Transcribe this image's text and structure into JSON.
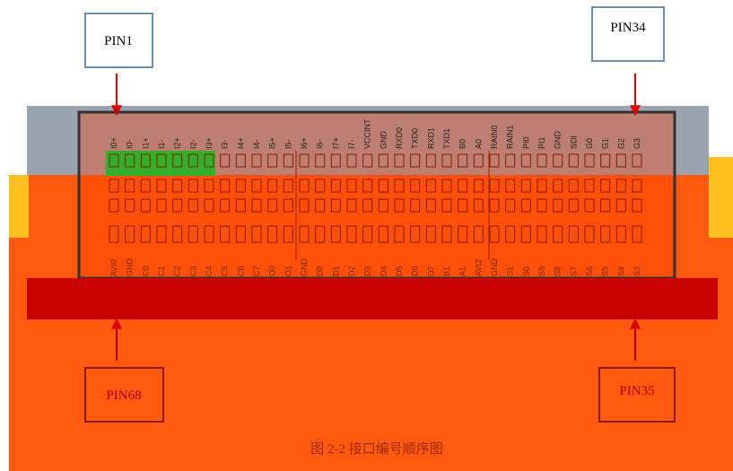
{
  "labels": {
    "pin1": "PIN1",
    "pin34": "PIN34",
    "pin68": "PIN68",
    "pin35": "PIN35"
  },
  "pins_top": [
    "I0+",
    "I0-",
    "I1+",
    "I1-",
    "I2+",
    "I2-",
    "I3+",
    "I3-",
    "I4+",
    "I4-",
    "I5+",
    "I5-",
    "I6+",
    "I6-",
    "I7+",
    "I7-",
    "VCCINT",
    "GND",
    "RXD0",
    "TXD0",
    "RXD1",
    "TXD1",
    "B0",
    "A0",
    "RAIN0",
    "RAIN1",
    "PI0",
    "PI1",
    "GND",
    "SDI",
    "G0",
    "G1",
    "G2",
    "G3"
  ],
  "pins_bottom": [
    "AVI0",
    "GND",
    "C0",
    "C1",
    "C2",
    "C3",
    "C4",
    "C5",
    "C6",
    "C7",
    "O0",
    "O1",
    "GND",
    "D0",
    "D1",
    "D2",
    "D3",
    "D4",
    "D5",
    "D6",
    "D7",
    "B1",
    "A1",
    "AVI2",
    "GND",
    "S1",
    "S0",
    "S9",
    "S8",
    "S7",
    "S6",
    "S5",
    "S4",
    "S3"
  ],
  "caption": "图 2-2  接口编号顺序图"
}
